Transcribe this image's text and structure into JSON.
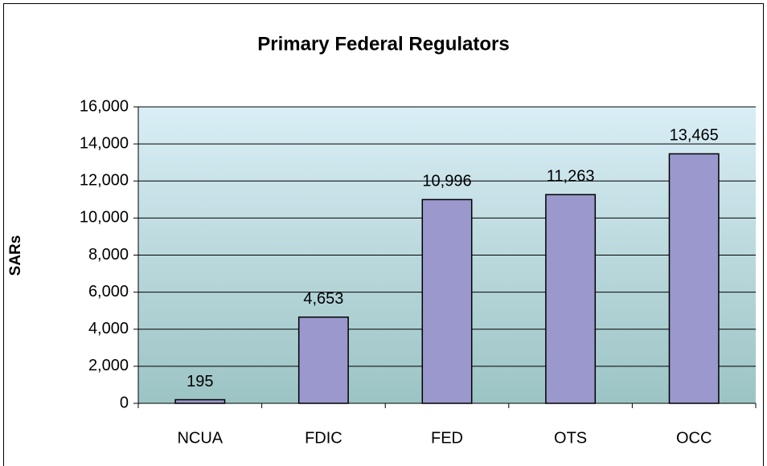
{
  "chart_data": {
    "type": "bar",
    "title": "Primary Federal Regulators",
    "y_label": "SARs",
    "categories": [
      "NCUA",
      "FDIC",
      "FED",
      "OTS",
      "OCC"
    ],
    "values": [
      195,
      4653,
      10996,
      11263,
      13465
    ],
    "value_labels": [
      "195",
      "4,653",
      "10,996",
      "11,263",
      "13,465"
    ],
    "color": "#9a98cc",
    "ylim": [
      0,
      16000
    ],
    "yticks": [
      0,
      {
        "value": 2000,
        "label": "2,000"
      },
      {
        "value": 4000,
        "label": "4,000"
      },
      {
        "value": 6000,
        "label": "6,000"
      },
      {
        "value": 8000,
        "label": "8,000"
      },
      {
        "value": 10000,
        "label": "10,000"
      },
      {
        "value": 12000,
        "label": "12,000"
      },
      {
        "value": 14000,
        "label": "14,000"
      },
      {
        "value": 16000,
        "label": "16,000"
      }
    ],
    "grid": true
  }
}
